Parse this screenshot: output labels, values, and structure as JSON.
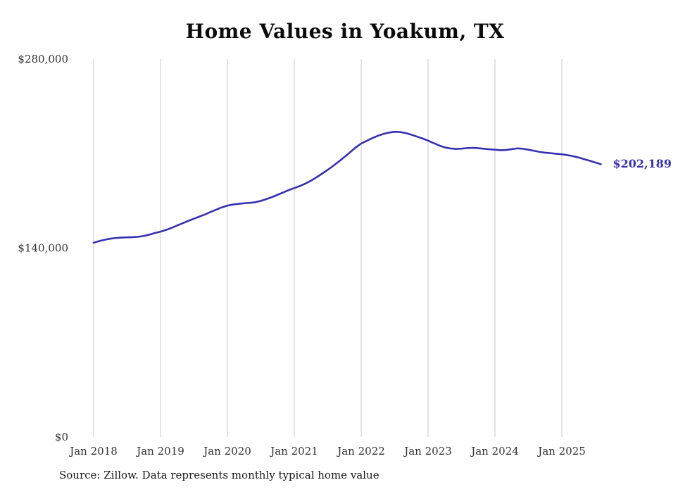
{
  "chart_data": {
    "type": "line",
    "title": "Home Values in Yoakum, TX",
    "xlabel": "",
    "ylabel": "",
    "ylim": [
      0,
      280000
    ],
    "grid": "vertical-yearly",
    "legend": "none",
    "x_interval": "monthly",
    "x_start": "Jan 2018",
    "x_end": "Aug 2025",
    "x_tick_labels": [
      "Jan 2018",
      "Jan 2019",
      "Jan 2020",
      "Jan 2021",
      "Jan 2022",
      "Jan 2023",
      "Jan 2024",
      "Jan 2025"
    ],
    "y_ticks": [
      {
        "value": 0,
        "label": "$0"
      },
      {
        "value": 140000,
        "label": "$140,000"
      },
      {
        "value": 280000,
        "label": "$280,000"
      }
    ],
    "series": [
      {
        "name": "Typical home value",
        "values": [
          144000,
          145200,
          146200,
          147000,
          147500,
          147800,
          148000,
          148100,
          148400,
          149000,
          150000,
          151200,
          152200,
          153500,
          155000,
          156800,
          158500,
          160200,
          161800,
          163400,
          165000,
          166800,
          168500,
          170200,
          171500,
          172300,
          172800,
          173200,
          173500,
          174000,
          175000,
          176300,
          177800,
          179500,
          181200,
          183000,
          184500,
          186000,
          187800,
          190000,
          192500,
          195200,
          198000,
          201000,
          204200,
          207500,
          211000,
          214500,
          217500,
          219500,
          221500,
          223200,
          224600,
          225600,
          226200,
          226000,
          225200,
          224000,
          222600,
          221200,
          219600,
          217800,
          216000,
          214600,
          213800,
          213500,
          213700,
          214100,
          214300,
          214000,
          213600,
          213200,
          212900,
          212500,
          212700,
          213300,
          213900,
          213600,
          212900,
          212100,
          211300,
          210700,
          210300,
          209900,
          209500,
          208900,
          208100,
          207100,
          205900,
          204700,
          203400,
          202189
        ]
      }
    ],
    "end_label": "$202,189",
    "line_color": "#3531b0",
    "grid_color": "#c9c9c9",
    "axis_label_color": "#333333"
  },
  "source_note": "Source: Zillow. Data represents monthly typical home value"
}
